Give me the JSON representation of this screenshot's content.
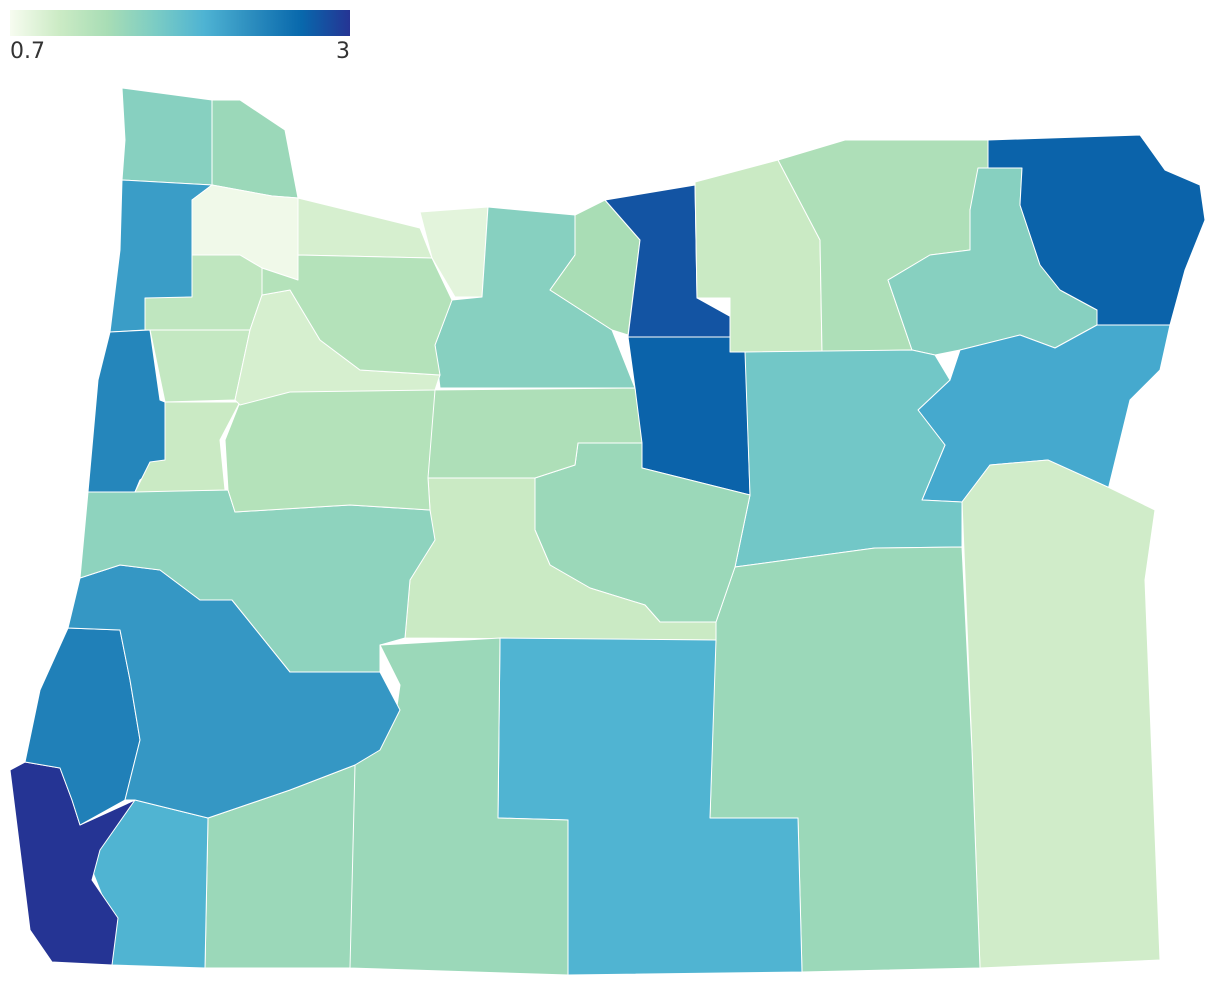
{
  "legend": {
    "min": 0.7,
    "max": 3,
    "colors": [
      "#f7fcf0",
      "#ccebc5",
      "#a8ddb5",
      "#7bccc4",
      "#4eb3d3",
      "#2b8cbe",
      "#0868ac",
      "#253494"
    ]
  },
  "regions": [
    {
      "value": 1.6
    },
    {
      "value": 1.45
    },
    {
      "value": 2.2
    },
    {
      "value": 0.75
    },
    {
      "value": 0.95
    },
    {
      "value": 0.85
    },
    {
      "value": 1.6
    },
    {
      "value": 1.35
    },
    {
      "value": 2.8
    },
    {
      "value": 2.7
    },
    {
      "value": 1.05
    },
    {
      "value": 1.3
    },
    {
      "value": 1.6
    },
    {
      "value": 2.7
    },
    {
      "value": 2.1
    },
    {
      "value": 1.75
    },
    {
      "value": 1.0
    },
    {
      "value": 1.45
    },
    {
      "value": 1.45
    },
    {
      "value": 1.3
    },
    {
      "value": 1.05
    },
    {
      "value": 2.0
    },
    {
      "value": 1.45
    },
    {
      "value": 1.45
    },
    {
      "value": 2.0
    },
    {
      "value": 3.0
    },
    {
      "value": 2.45
    },
    {
      "value": 2.25
    },
    {
      "value": 1.55
    },
    {
      "value": 2.4
    },
    {
      "value": 1.05
    },
    {
      "value": 1.25
    },
    {
      "value": 1.1
    },
    {
      "value": 1.15
    },
    {
      "value": 0.95
    },
    {
      "value": 1.25
    }
  ]
}
